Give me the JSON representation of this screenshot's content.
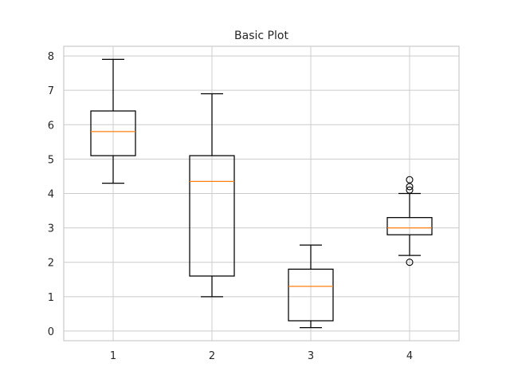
{
  "chart_data": {
    "type": "box",
    "title": "Basic Plot",
    "xlabel": "",
    "ylabel": "",
    "categories": [
      "1",
      "2",
      "3",
      "4"
    ],
    "ylim": [
      -0.28,
      8.28
    ],
    "yticks": [
      0,
      1,
      2,
      3,
      4,
      5,
      6,
      7,
      8
    ],
    "grid": true,
    "colors": {
      "box": "#000000",
      "median": "#ff7f0e",
      "grid": "#cccccc"
    },
    "boxes": [
      {
        "label": "1",
        "whisker_low": 4.3,
        "q1": 5.1,
        "median": 5.8,
        "q3": 6.4,
        "whisker_high": 7.9,
        "fliers": []
      },
      {
        "label": "2",
        "whisker_low": 1.0,
        "q1": 1.6,
        "median": 4.35,
        "q3": 5.1,
        "whisker_high": 6.9,
        "fliers": []
      },
      {
        "label": "3",
        "whisker_low": 0.1,
        "q1": 0.3,
        "median": 1.3,
        "q3": 1.8,
        "whisker_high": 2.5,
        "fliers": []
      },
      {
        "label": "4",
        "whisker_low": 2.2,
        "q1": 2.8,
        "median": 3.0,
        "q3": 3.3,
        "whisker_high": 4.0,
        "fliers": [
          2.0,
          4.1,
          4.2,
          4.4
        ]
      }
    ]
  }
}
